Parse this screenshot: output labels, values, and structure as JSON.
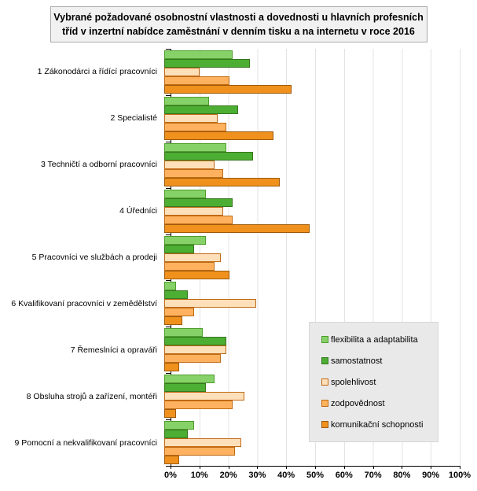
{
  "title": "Vybrané požadované osobnostní vlastnosti a dovednosti u hlavních profesních tříd v inzertní nabídce zaměstnání v denním tisku a na internetu v roce 2016",
  "chart_data": {
    "type": "bar",
    "orientation": "horizontal",
    "title": "Vybrané požadované osobnostní vlastnosti a dovednosti u hlavních profesních tříd v inzertní nabídce zaměstnání v denním tisku a na internetu v roce 2016",
    "categories": [
      "1 Zákonodárci a řídící pracovníci",
      "2 Specialisté",
      "3 Techničtí a odborní pracovníci",
      "4 Úředníci",
      "5 Pracovníci ve službách a prodeji",
      "6 Kvalifikovaní pracovníci v zemědělství",
      "7 Řemeslníci a opraváři",
      "8 Obsluha strojů a zařízení, montéři",
      "9 Pomocní a nekvalifikovaní pracovníci"
    ],
    "series": [
      {
        "key": "flexibilita",
        "name": "flexibilita a adaptabilita",
        "fill": "#87D169",
        "border": "#4E9D2D",
        "values": [
          23,
          15,
          21,
          14,
          14,
          4,
          13,
          17,
          10
        ]
      },
      {
        "key": "samostatnost",
        "name": "samostatnost",
        "fill": "#4CAE32",
        "border": "#37761F",
        "values": [
          29,
          25,
          30,
          23,
          10,
          8,
          21,
          14,
          8
        ]
      },
      {
        "key": "spolehlivost",
        "name": "spolehlivost",
        "fill": "#FDDFB9",
        "border": "#C06A14",
        "values": [
          12,
          18,
          17,
          20,
          19,
          31,
          21,
          27,
          26
        ]
      },
      {
        "key": "zodpovednost",
        "name": "zodpovědnost",
        "fill": "#FEB25F",
        "border": "#C06A14",
        "values": [
          22,
          21,
          20,
          23,
          17,
          10,
          19,
          23,
          24
        ]
      },
      {
        "key": "komunikacni",
        "name": "komunikační schopnosti",
        "fill": "#F0911D",
        "border": "#9C5A0B",
        "values": [
          43,
          37,
          39,
          49,
          22,
          6,
          5,
          4,
          5
        ]
      }
    ],
    "x_ticks": [
      "0%",
      "10%",
      "20%",
      "30%",
      "40%",
      "50%",
      "60%",
      "70%",
      "80%",
      "90%",
      "100%"
    ],
    "xlim": [
      0,
      100
    ],
    "grid": true,
    "legend_position": "overlay-bottom-right",
    "gridline_color": "#e3e3e3",
    "axis_color": "#000000"
  }
}
